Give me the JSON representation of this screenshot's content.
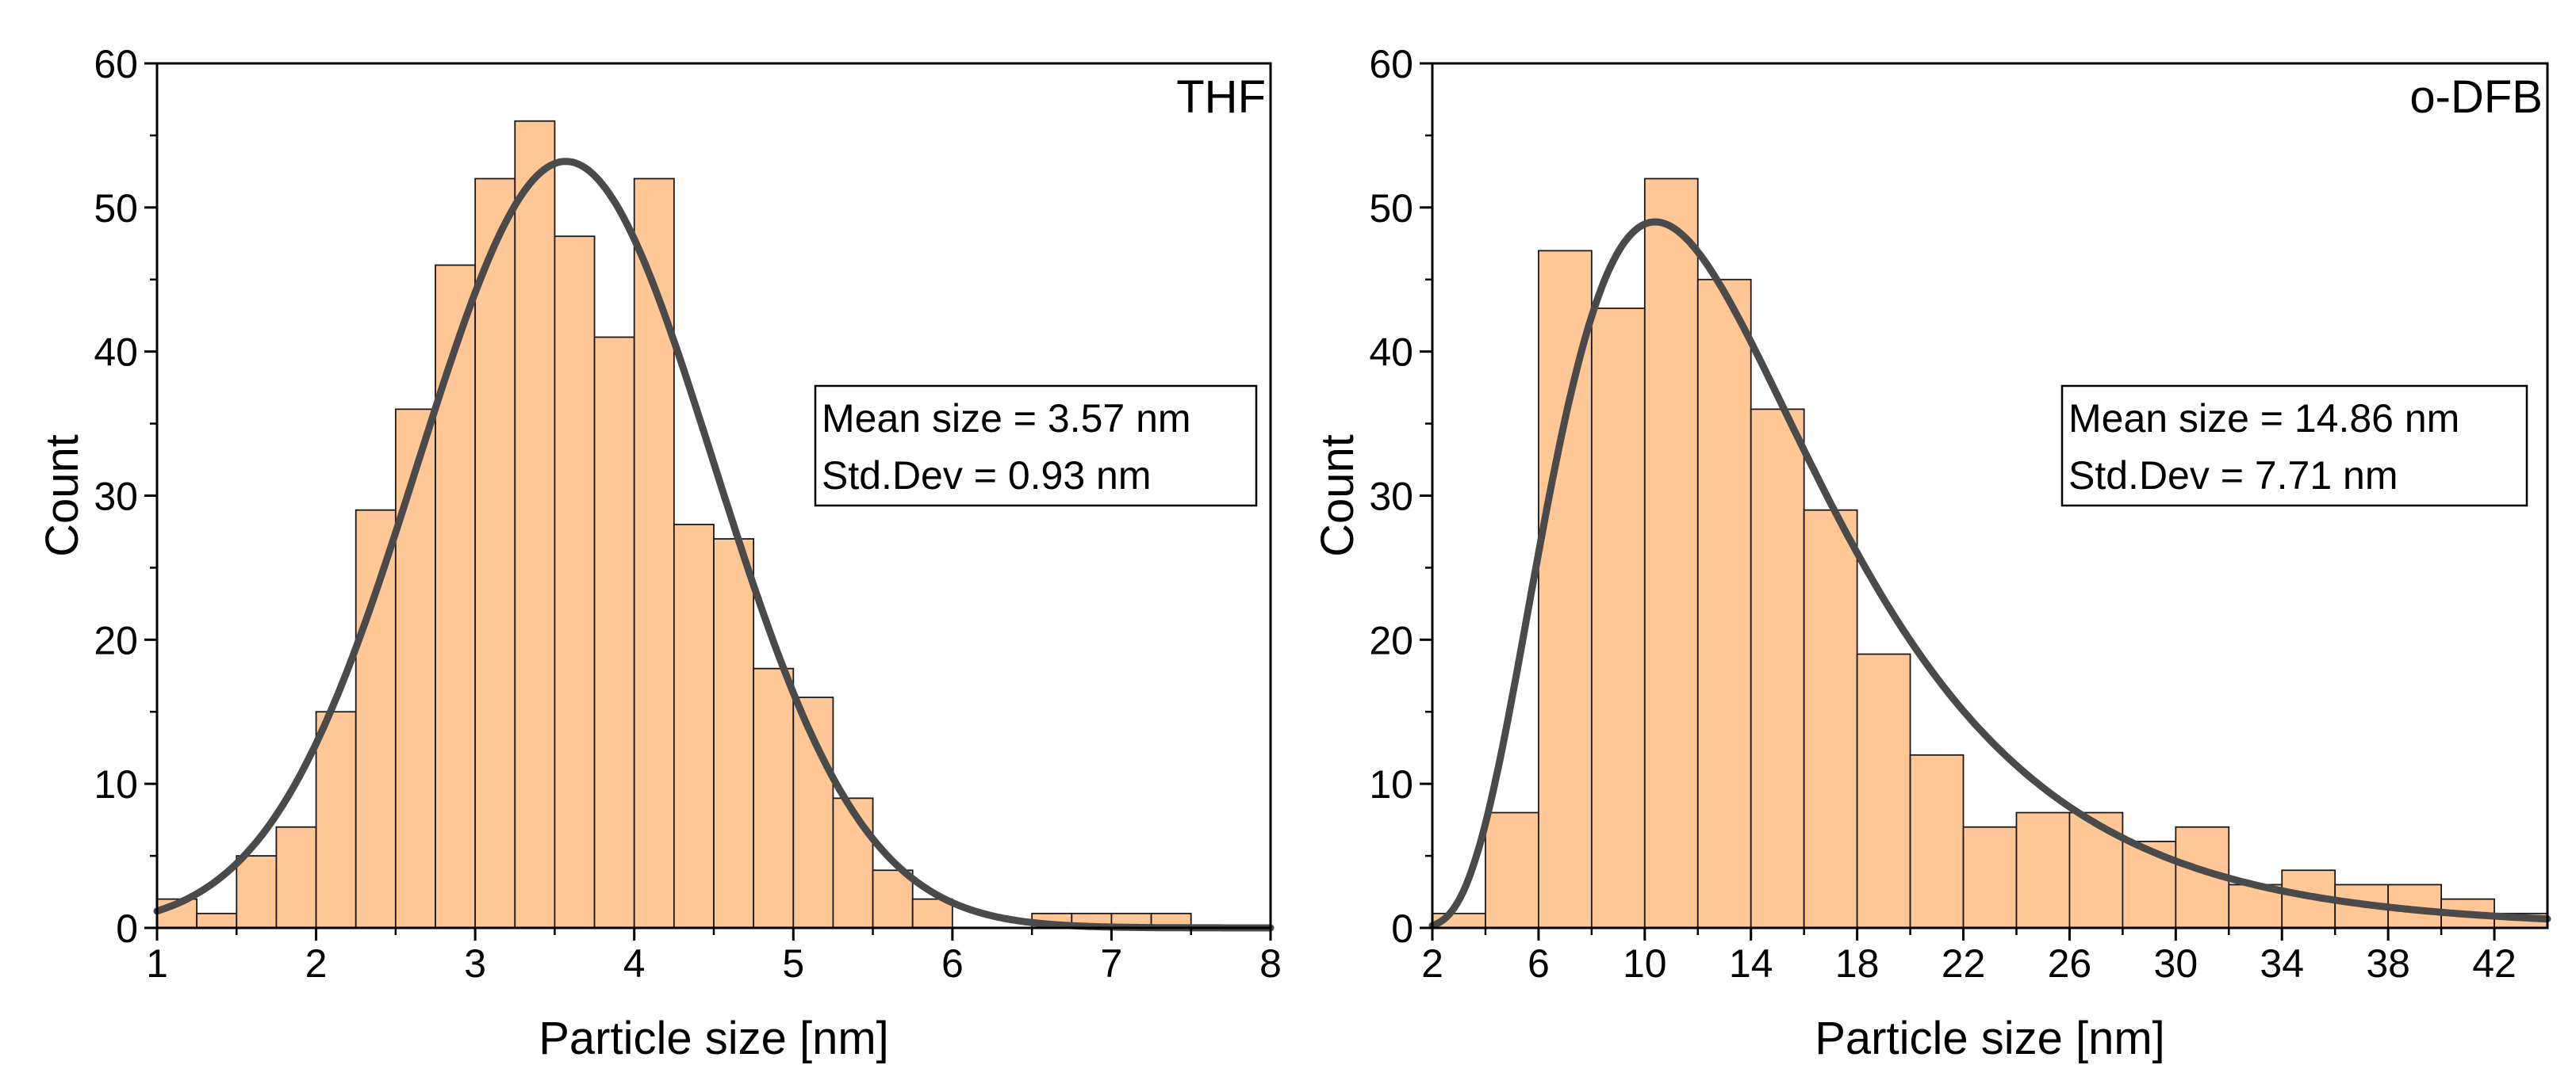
{
  "colors": {
    "bar_fill": "#FFC795",
    "bar_stroke": "#1a1a1a",
    "fit_line": "#4a4a4a",
    "axis": "#000000"
  },
  "chart_data": [
    {
      "type": "bar",
      "panel_label": "THF",
      "xlabel": "Particle size [nm]",
      "ylabel": "Count",
      "xlim": [
        1,
        8
      ],
      "ylim": [
        0,
        60
      ],
      "x_ticks": [
        1,
        2,
        3,
        4,
        5,
        6,
        7,
        8
      ],
      "y_ticks": [
        0,
        10,
        20,
        30,
        40,
        50,
        60
      ],
      "bin_width": 0.25,
      "bins": [
        {
          "x0": 1.0,
          "value": 2
        },
        {
          "x0": 1.25,
          "value": 1
        },
        {
          "x0": 1.5,
          "value": 5
        },
        {
          "x0": 1.75,
          "value": 7
        },
        {
          "x0": 2.0,
          "value": 15
        },
        {
          "x0": 2.25,
          "value": 29
        },
        {
          "x0": 2.5,
          "value": 36
        },
        {
          "x0": 2.75,
          "value": 46
        },
        {
          "x0": 3.0,
          "value": 52
        },
        {
          "x0": 3.25,
          "value": 56
        },
        {
          "x0": 3.5,
          "value": 48
        },
        {
          "x0": 3.75,
          "value": 41
        },
        {
          "x0": 4.0,
          "value": 52
        },
        {
          "x0": 4.25,
          "value": 28
        },
        {
          "x0": 4.5,
          "value": 27
        },
        {
          "x0": 4.75,
          "value": 18
        },
        {
          "x0": 5.0,
          "value": 16
        },
        {
          "x0": 5.25,
          "value": 9
        },
        {
          "x0": 5.5,
          "value": 4
        },
        {
          "x0": 5.75,
          "value": 2
        },
        {
          "x0": 6.5,
          "value": 1
        },
        {
          "x0": 6.75,
          "value": 1
        },
        {
          "x0": 7.0,
          "value": 1
        },
        {
          "x0": 7.25,
          "value": 1
        }
      ],
      "fit": {
        "type": "normal",
        "mean": 3.57,
        "sd": 0.93,
        "peak": 53.2
      },
      "stats_lines": [
        "Mean size = 3.57 nm",
        "Std.Dev = 0.93 nm"
      ]
    },
    {
      "type": "bar",
      "panel_label": "o-DFB",
      "xlabel": "Particle size [nm]",
      "ylabel": "Count",
      "xlim": [
        2,
        44
      ],
      "ylim": [
        0,
        60
      ],
      "x_ticks": [
        2,
        6,
        10,
        14,
        18,
        22,
        26,
        30,
        34,
        38,
        42
      ],
      "y_ticks": [
        0,
        10,
        20,
        30,
        40,
        50,
        60
      ],
      "bin_width": 2,
      "bins": [
        {
          "x0": 2,
          "value": 1
        },
        {
          "x0": 4,
          "value": 8
        },
        {
          "x0": 6,
          "value": 47
        },
        {
          "x0": 8,
          "value": 43
        },
        {
          "x0": 10,
          "value": 52
        },
        {
          "x0": 12,
          "value": 45
        },
        {
          "x0": 14,
          "value": 36
        },
        {
          "x0": 16,
          "value": 29
        },
        {
          "x0": 18,
          "value": 19
        },
        {
          "x0": 20,
          "value": 12
        },
        {
          "x0": 22,
          "value": 7
        },
        {
          "x0": 24,
          "value": 8
        },
        {
          "x0": 26,
          "value": 8
        },
        {
          "x0": 28,
          "value": 6
        },
        {
          "x0": 30,
          "value": 7
        },
        {
          "x0": 32,
          "value": 3
        },
        {
          "x0": 34,
          "value": 4
        },
        {
          "x0": 36,
          "value": 3
        },
        {
          "x0": 38,
          "value": 3
        },
        {
          "x0": 40,
          "value": 2
        },
        {
          "x0": 42,
          "value": 1
        }
      ],
      "fit": {
        "type": "lognormal",
        "mean": 14.86,
        "sd": 7.71,
        "peak": 49.0
      },
      "stats_lines": [
        "Mean size = 14.86 nm",
        "Std.Dev = 7.71 nm"
      ]
    }
  ]
}
